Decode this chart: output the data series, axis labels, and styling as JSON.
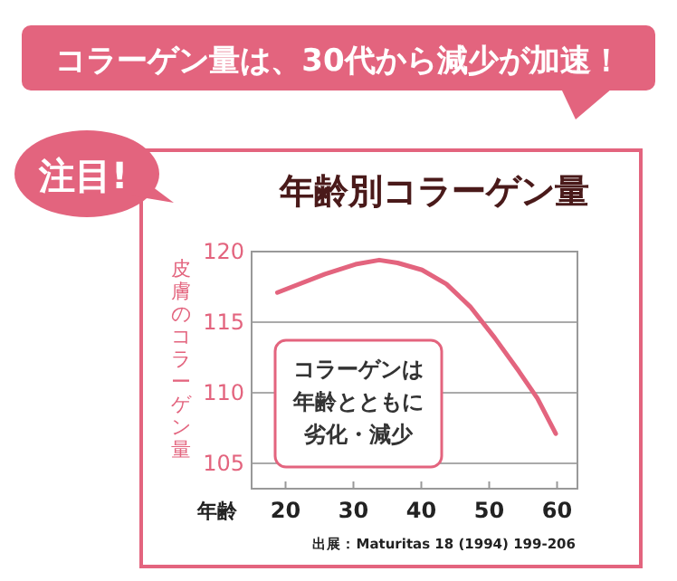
{
  "chart_data": {
    "type": "line",
    "title": "年齢別コラーゲン量",
    "ylabel": "皮膚のコラーゲン量",
    "xlabel": "年齢",
    "annotations": [
      "コラーゲン量は、30代から減少が加速！",
      "注目!",
      "コラーゲンは",
      "年齢とともに",
      "劣化・減少",
      "出展：Maturitas 18 (1994) 199-206"
    ],
    "x": [
      18.8,
      25.8,
      30.3,
      33.8,
      36.5,
      40.1,
      43.7,
      47.2,
      50.8,
      54.4,
      57.1,
      59.8
    ],
    "series": [
      {
        "color": "#e3647e",
        "values": [
          117.1,
          118.4,
          119.1,
          119.4,
          119.2,
          118.7,
          117.7,
          116.1,
          113.9,
          111.5,
          109.6,
          107.1
        ]
      }
    ],
    "xlim": [
      15,
      63
    ],
    "ylim": [
      103.2,
      120
    ],
    "xticks": [
      20,
      30,
      40,
      50,
      60
    ],
    "yticks": [
      105,
      110,
      115,
      120
    ],
    "grid": "y",
    "marker": "none",
    "line_style": "solid"
  }
}
